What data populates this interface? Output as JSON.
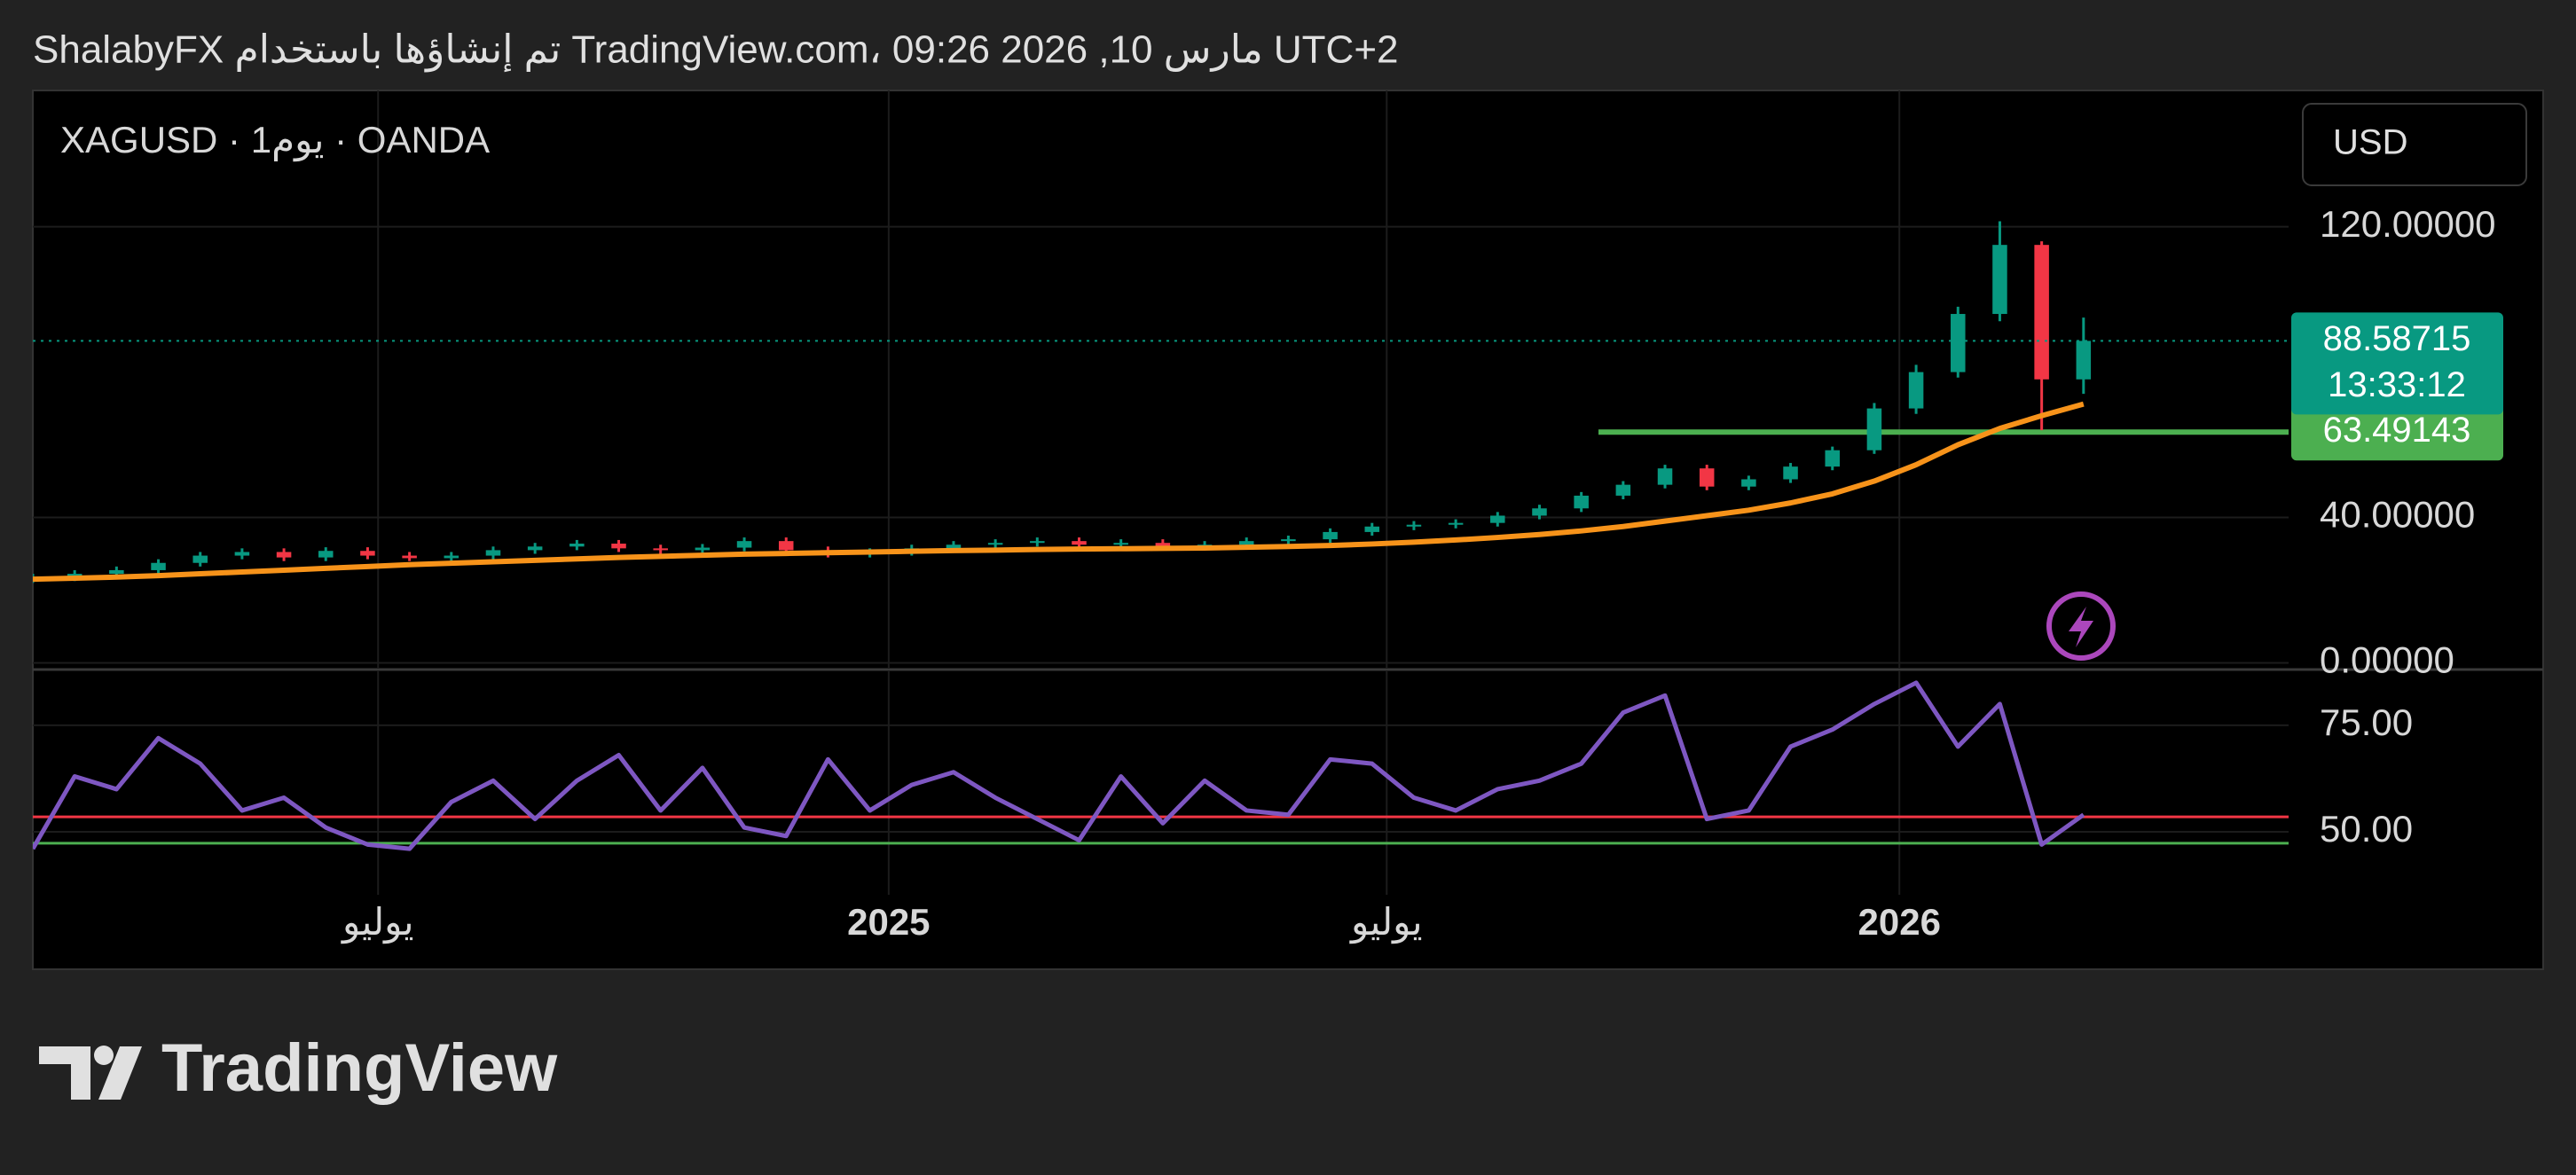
{
  "header": {
    "text": "ShalabyFX تم إنشاؤها باستخدام TradingView.com، 09:26 2026 ,10 مارس UTC+2"
  },
  "footer": {
    "brand": "TradingView"
  },
  "chart_data": [
    {
      "type": "candlestick",
      "title": "XAGUSD · 1يوم · OANDA",
      "currency": "USD",
      "up_color": "#089981",
      "down_color": "#f23645",
      "open": [
        23.0,
        23.5,
        24.5,
        25.5,
        27.5,
        29.5,
        30.5,
        29.0,
        30.8,
        29.5,
        28.8,
        29.5,
        31.0,
        32.0,
        32.8,
        31.5,
        31.0,
        31.7,
        33.5,
        31.0,
        30.0,
        30.5,
        31.5,
        32.5,
        33.0,
        33.5,
        32.5,
        33.0,
        32.0,
        32.5,
        33.5,
        34.0,
        36.0,
        37.5,
        38.0,
        38.5,
        40.5,
        42.5,
        46.0,
        49.0,
        53.5,
        48.5,
        50.5,
        54.0,
        58.5,
        70.0,
        80.0,
        96.0,
        115.0,
        78.0
      ],
      "high": [
        24.5,
        25.5,
        26.5,
        28.5,
        30.5,
        31.5,
        31.5,
        31.8,
        31.8,
        30.5,
        30.5,
        32.0,
        33.0,
        33.8,
        33.8,
        32.5,
        32.7,
        34.5,
        34.5,
        32.0,
        31.5,
        32.5,
        33.5,
        34.0,
        34.5,
        34.5,
        34.0,
        34.0,
        33.5,
        34.5,
        35.0,
        37.0,
        38.5,
        39.0,
        39.5,
        41.5,
        43.5,
        47.0,
        50.0,
        54.5,
        54.5,
        51.5,
        55.0,
        59.5,
        71.5,
        82.0,
        98.0,
        121.5,
        116.0,
        95.0
      ],
      "low": [
        22.0,
        22.5,
        23.5,
        24.5,
        26.5,
        28.5,
        28.0,
        28.0,
        28.5,
        28.0,
        27.8,
        28.5,
        30.0,
        31.0,
        30.5,
        30.0,
        30.0,
        30.7,
        30.0,
        29.0,
        29.0,
        29.5,
        30.5,
        31.5,
        32.0,
        31.5,
        31.5,
        31.0,
        31.0,
        31.5,
        32.5,
        33.0,
        35.0,
        36.5,
        37.0,
        37.5,
        39.5,
        41.5,
        45.0,
        48.0,
        47.5,
        47.5,
        49.5,
        53.0,
        57.5,
        68.5,
        78.5,
        94.0,
        64.0,
        74.0
      ],
      "close": [
        23.5,
        24.5,
        25.5,
        27.5,
        29.5,
        30.5,
        29.0,
        30.8,
        29.5,
        28.8,
        29.5,
        31.0,
        32.0,
        32.8,
        31.5,
        31.0,
        31.7,
        33.5,
        31.0,
        30.0,
        30.5,
        31.5,
        32.5,
        33.0,
        33.5,
        32.5,
        33.0,
        32.0,
        32.5,
        33.5,
        34.0,
        36.0,
        37.5,
        38.0,
        38.5,
        40.5,
        42.5,
        46.0,
        49.0,
        53.5,
        48.5,
        50.5,
        54.0,
        58.5,
        70.0,
        80.0,
        96.0,
        115.0,
        78.0,
        88.58715
      ],
      "series": [
        {
          "color": "#f7931a",
          "values": [
            23.0,
            23.3,
            23.6,
            24.0,
            24.5,
            25.0,
            25.5,
            26.0,
            26.5,
            27.0,
            27.4,
            27.8,
            28.2,
            28.6,
            29.0,
            29.3,
            29.6,
            29.9,
            30.1,
            30.3,
            30.5,
            30.7,
            30.9,
            31.0,
            31.2,
            31.3,
            31.4,
            31.5,
            31.6,
            31.8,
            32.0,
            32.3,
            32.7,
            33.2,
            33.8,
            34.5,
            35.3,
            36.3,
            37.5,
            39.0,
            40.5,
            42.0,
            44.0,
            46.5,
            50.0,
            54.5,
            60.0,
            64.5,
            68.0,
            71.2
          ]
        }
      ],
      "last_price": {
        "value": 88.58715,
        "countdown": "13:33:12",
        "color": "#089981"
      },
      "levels": [
        {
          "value": 63.49143,
          "color": "#4caf50"
        }
      ],
      "xlim": [
        0,
        53.9
      ],
      "ylim": [
        -1.6,
        157.5
      ],
      "yticks": [
        {
          "value": 0,
          "label": "0.00000"
        },
        {
          "value": 40,
          "label": "40.00000"
        },
        {
          "value": 120,
          "label": "120.00000"
        }
      ],
      "grid": true
    },
    {
      "type": "line",
      "series": [
        {
          "color": "#7e57c2",
          "values": [
            46,
            63,
            60,
            72,
            66,
            55,
            58,
            51,
            47,
            46,
            57,
            62,
            53,
            62,
            68,
            55,
            65,
            51,
            49,
            67,
            55,
            61,
            64,
            58,
            53,
            48,
            63,
            52,
            62,
            55,
            54,
            67,
            66,
            58,
            55,
            60,
            62,
            66,
            78,
            82,
            53,
            55,
            70,
            74,
            80,
            85,
            70,
            80,
            47,
            54
          ]
        }
      ],
      "levels": [
        {
          "value": 53.5,
          "color": "#f23645"
        },
        {
          "value": 47.3,
          "color": "#4caf50"
        }
      ],
      "xlim": [
        0,
        53.9
      ],
      "ylim": [
        35.2,
        87.9
      ],
      "yticks": [
        {
          "value": 75,
          "label": "75.00"
        },
        {
          "value": 50,
          "label": "50.00"
        }
      ],
      "xticks": [
        {
          "value": 8.25,
          "label": "يوليو"
        },
        {
          "value": 20.45,
          "label": "2025"
        },
        {
          "value": 32.35,
          "label": "يوليو"
        },
        {
          "value": 44.6,
          "label": "2026"
        }
      ],
      "grid": true
    }
  ]
}
